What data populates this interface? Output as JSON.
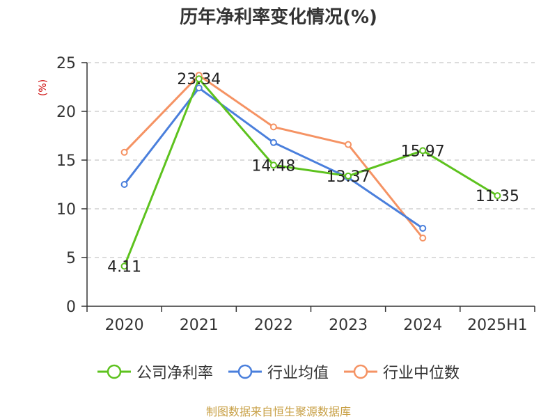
{
  "title": "历年净利率变化情况(%)",
  "y_unit": "(%)",
  "source": "制图数据来自恒生聚源数据库",
  "colors": {
    "company": "#5dc21e",
    "industry_avg": "#4a7fdc",
    "industry_median": "#f59364"
  },
  "chart_data": {
    "type": "line",
    "title": "历年净利率变化情况(%)",
    "ylabel": "(%)",
    "xlabel": "",
    "categories": [
      "2020",
      "2021",
      "2022",
      "2023",
      "2024",
      "2025H1"
    ],
    "ylim": [
      0,
      25
    ],
    "yticks": [
      0,
      5,
      10,
      15,
      20,
      25
    ],
    "grid": true,
    "legend_position": "bottom",
    "series": [
      {
        "name": "公司净利率",
        "color": "#5dc21e",
        "values": [
          4.11,
          23.34,
          14.48,
          13.37,
          15.97,
          11.35
        ],
        "labels": [
          "4.11",
          "23.34",
          "14.48",
          "13.37",
          "15.97",
          "11.35"
        ]
      },
      {
        "name": "行业均值",
        "color": "#4a7fdc",
        "values": [
          12.5,
          22.4,
          16.8,
          13.2,
          8.0,
          null
        ]
      },
      {
        "name": "行业中位数",
        "color": "#f59364",
        "values": [
          15.8,
          23.7,
          18.4,
          16.6,
          7.0,
          null
        ]
      }
    ]
  }
}
